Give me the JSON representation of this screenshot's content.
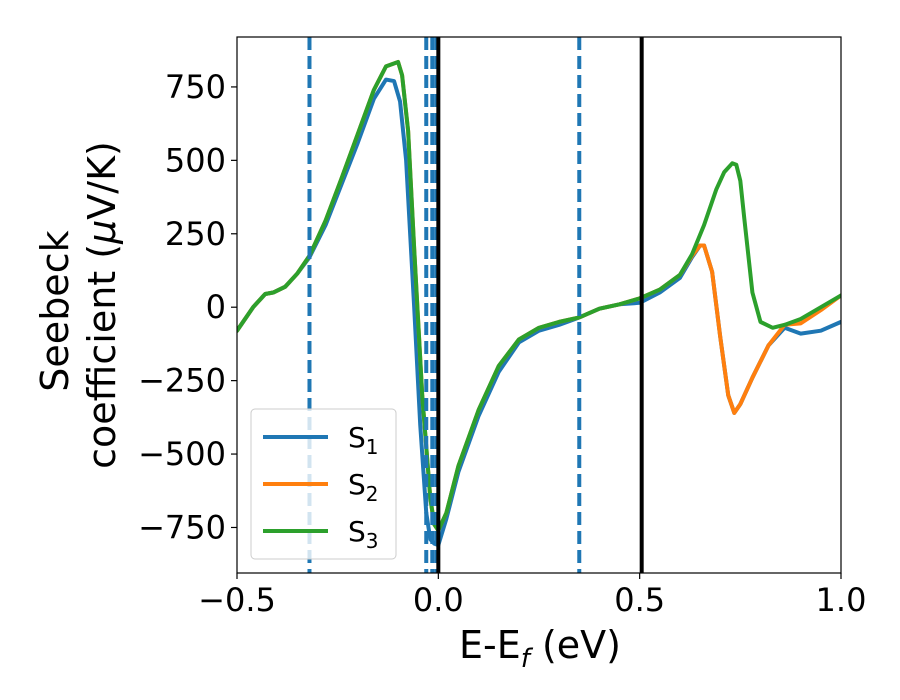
{
  "chart_data": {
    "type": "line",
    "title": "",
    "xlabel": "E-E",
    "xlabel_sub": "f",
    "xlabel_unit": " (eV)",
    "ylabel_line1": "Seebeck",
    "ylabel_line2_prefix": "coefficient  (",
    "ylabel_mu": "μ",
    "ylabel_line2_suffix": "V/K)",
    "xlim": [
      -0.5,
      1.0
    ],
    "ylim": [
      -905,
      920
    ],
    "xticks": [
      {
        "v": -0.5,
        "label": "−0.5"
      },
      {
        "v": 0.0,
        "label": "0.0"
      },
      {
        "v": 0.5,
        "label": "0.5"
      },
      {
        "v": 1.0,
        "label": "1.0"
      }
    ],
    "yticks": [
      {
        "v": 750,
        "label": "750"
      },
      {
        "v": 500,
        "label": "500"
      },
      {
        "v": 250,
        "label": "250"
      },
      {
        "v": 0,
        "label": "0"
      },
      {
        "v": -250,
        "label": "−250"
      },
      {
        "v": -500,
        "label": "−500"
      },
      {
        "v": -750,
        "label": "−750"
      }
    ],
    "grid": false,
    "legend_position": "lower-left",
    "vlines_dashed": [
      -0.32,
      -0.03,
      -0.015,
      -0.005,
      0.35
    ],
    "vlines_solid": [
      0.0,
      0.505
    ],
    "series": [
      {
        "name": "S",
        "sub": "1",
        "color": "#1f77b4",
        "x": [
          -0.5,
          -0.46,
          -0.43,
          -0.41,
          -0.38,
          -0.35,
          -0.32,
          -0.28,
          -0.24,
          -0.2,
          -0.16,
          -0.13,
          -0.11,
          -0.095,
          -0.08,
          -0.06,
          -0.045,
          -0.03,
          -0.02,
          -0.01,
          0.0,
          0.02,
          0.05,
          0.1,
          0.15,
          0.2,
          0.25,
          0.3,
          0.35,
          0.4,
          0.45,
          0.5,
          0.55,
          0.6,
          0.63,
          0.65,
          0.66,
          0.68,
          0.7,
          0.72,
          0.735,
          0.75,
          0.78,
          0.82,
          0.86,
          0.9,
          0.95,
          1.0
        ],
        "y": [
          -80,
          0,
          45,
          50,
          70,
          115,
          170,
          280,
          420,
          560,
          710,
          775,
          770,
          700,
          500,
          0,
          -400,
          -700,
          -790,
          -805,
          -810,
          -720,
          -560,
          -370,
          -220,
          -120,
          -80,
          -60,
          -35,
          -5,
          10,
          15,
          50,
          100,
          170,
          210,
          210,
          120,
          -100,
          -300,
          -360,
          -330,
          -240,
          -130,
          -70,
          -90,
          -80,
          -50
        ]
      },
      {
        "name": "S",
        "sub": "2",
        "color": "#ff7f0e",
        "x": [
          -0.5,
          -0.46,
          -0.43,
          -0.41,
          -0.38,
          -0.35,
          -0.32,
          -0.28,
          -0.24,
          -0.2,
          -0.16,
          -0.13,
          -0.1,
          -0.09,
          -0.075,
          -0.06,
          -0.04,
          -0.02,
          -0.01,
          0.0,
          0.02,
          0.05,
          0.1,
          0.15,
          0.2,
          0.25,
          0.3,
          0.35,
          0.4,
          0.45,
          0.5,
          0.55,
          0.6,
          0.63,
          0.65,
          0.66,
          0.68,
          0.7,
          0.72,
          0.735,
          0.75,
          0.78,
          0.82,
          0.86,
          0.9,
          0.95,
          1.0
        ],
        "y": [
          -80,
          0,
          45,
          50,
          70,
          115,
          175,
          295,
          440,
          590,
          740,
          820,
          835,
          790,
          600,
          200,
          -300,
          -650,
          -740,
          -760,
          -700,
          -540,
          -350,
          -200,
          -110,
          -70,
          -50,
          -35,
          -5,
          10,
          30,
          60,
          110,
          175,
          210,
          210,
          120,
          -100,
          -300,
          -360,
          -330,
          -240,
          -130,
          -60,
          -55,
          -10,
          40
        ]
      },
      {
        "name": "S",
        "sub": "3",
        "color": "#2ca02c",
        "x": [
          -0.5,
          -0.46,
          -0.43,
          -0.41,
          -0.38,
          -0.35,
          -0.32,
          -0.28,
          -0.24,
          -0.2,
          -0.16,
          -0.13,
          -0.1,
          -0.09,
          -0.075,
          -0.06,
          -0.04,
          -0.02,
          -0.01,
          0.0,
          0.02,
          0.05,
          0.1,
          0.15,
          0.2,
          0.25,
          0.3,
          0.35,
          0.4,
          0.45,
          0.5,
          0.55,
          0.6,
          0.63,
          0.66,
          0.69,
          0.71,
          0.73,
          0.74,
          0.75,
          0.76,
          0.78,
          0.8,
          0.83,
          0.86,
          0.9,
          0.95,
          1.0
        ],
        "y": [
          -80,
          0,
          45,
          50,
          70,
          115,
          175,
          295,
          440,
          590,
          740,
          820,
          835,
          790,
          600,
          200,
          -300,
          -650,
          -740,
          -760,
          -700,
          -540,
          -350,
          -200,
          -110,
          -70,
          -50,
          -35,
          -5,
          10,
          30,
          60,
          110,
          180,
          280,
          400,
          460,
          490,
          485,
          430,
          300,
          50,
          -50,
          -70,
          -60,
          -40,
          0,
          40
        ]
      }
    ]
  }
}
